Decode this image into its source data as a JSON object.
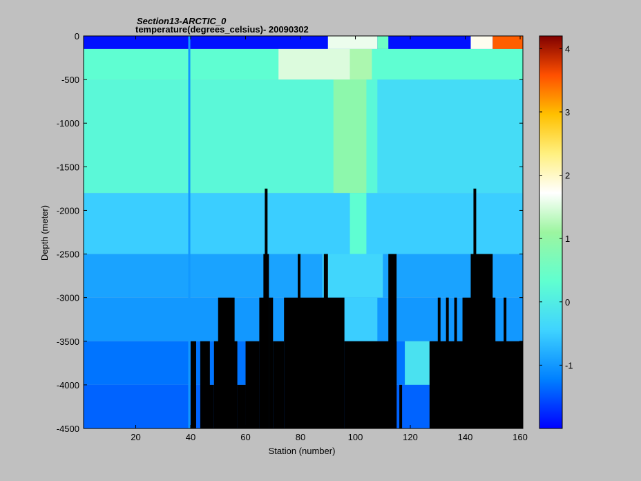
{
  "chart_data": {
    "type": "heatmap",
    "title": "Section13-ARCTIC_0",
    "subtitle": "temperature(degrees_celsius)- 20090302",
    "xlabel": "Station (number)",
    "ylabel": "Depth (meter)",
    "xlim": [
      1,
      161
    ],
    "ylim": [
      -4500,
      0
    ],
    "x_ticks": [
      20,
      40,
      60,
      80,
      100,
      120,
      140,
      160
    ],
    "y_ticks": [
      0,
      -500,
      -1000,
      -1500,
      -2000,
      -2500,
      -3000,
      -3500,
      -4000,
      -4500
    ],
    "colorbar": {
      "range": [
        -2,
        4.2
      ],
      "ticks": [
        4,
        3,
        2,
        1,
        0,
        -1
      ],
      "colormap": "jet",
      "nodata_color": "#000000"
    },
    "layers": [
      {
        "depth_range": [
          0,
          -150
        ],
        "base_value": -1.9,
        "segments": [
          {
            "stations": [
              90,
              108
            ],
            "value": 1.6
          },
          {
            "stations": [
              108,
              112
            ],
            "value": 0.5
          },
          {
            "stations": [
              142,
              150
            ],
            "value": 1.8
          },
          {
            "stations": [
              150,
              161
            ],
            "value": 3.5
          }
        ]
      },
      {
        "depth_range": [
          -150,
          -500
        ],
        "base_value": 0.3,
        "segments": [
          {
            "stations": [
              72,
              98
            ],
            "value": 1.5
          },
          {
            "stations": [
              98,
              106
            ],
            "value": 1.2
          }
        ]
      },
      {
        "depth_range": [
          -500,
          -1800
        ],
        "base_value": 0.2,
        "segments": [
          {
            "stations": [
              92,
              104
            ],
            "value": 0.9
          },
          {
            "stations": [
              108,
              161
            ],
            "value": -0.3
          }
        ]
      },
      {
        "depth_range": [
          -1800,
          -2500
        ],
        "base_value": -0.5,
        "segments": [
          {
            "stations": [
              98,
              104
            ],
            "value": 0.3
          }
        ]
      },
      {
        "depth_range": [
          -2500,
          -3000
        ],
        "base_value": -0.9,
        "segments": [
          {
            "stations": [
              88,
              110
            ],
            "value": -0.4
          }
        ]
      },
      {
        "depth_range": [
          -3000,
          -3500
        ],
        "base_value": -1.0,
        "segments": [
          {
            "stations": [
              96,
              108
            ],
            "value": -0.5
          }
        ]
      },
      {
        "depth_range": [
          -3500,
          -4000
        ],
        "base_value": -1.3,
        "segments": [
          {
            "stations": [
              118,
              127
            ],
            "value": -0.2
          }
        ]
      },
      {
        "depth_range": [
          -4000,
          -4500
        ],
        "base_value": -1.4,
        "segments": []
      }
    ],
    "bottom_mask": [
      {
        "stations": [
          40,
          42
        ],
        "from_depth": -3500
      },
      {
        "stations": [
          43.5,
          47
        ],
        "from_depth": -3500
      },
      {
        "stations": [
          45,
          48.5
        ],
        "from_depth": -4000
      },
      {
        "stations": [
          48.5,
          57
        ],
        "from_depth": -3500
      },
      {
        "stations": [
          50,
          56
        ],
        "from_depth": -3000
      },
      {
        "stations": [
          57,
          60
        ],
        "from_depth": -4000
      },
      {
        "stations": [
          60,
          65
        ],
        "from_depth": -3500
      },
      {
        "stations": [
          65,
          68.5
        ],
        "from_depth": -3000
      },
      {
        "stations": [
          66.5,
          68.5
        ],
        "from_depth": -2500
      },
      {
        "stations": [
          67,
          68
        ],
        "from_depth": -1750
      },
      {
        "stations": [
          68.5,
          70
        ],
        "from_depth": -3000
      },
      {
        "stations": [
          70,
          74
        ],
        "from_depth": -3500
      },
      {
        "stations": [
          74,
          96
        ],
        "from_depth": -3000
      },
      {
        "stations": [
          79,
          80
        ],
        "from_depth": -2500
      },
      {
        "stations": [
          88.5,
          90
        ],
        "from_depth": -2500
      },
      {
        "stations": [
          96,
          115
        ],
        "from_depth": -3500
      },
      {
        "stations": [
          112,
          115
        ],
        "from_depth": -2500
      },
      {
        "stations": [
          116,
          117
        ],
        "from_depth": -4000
      },
      {
        "stations": [
          127,
          161
        ],
        "from_depth": -3500
      },
      {
        "stations": [
          130,
          131
        ],
        "from_depth": -3000
      },
      {
        "stations": [
          133,
          134
        ],
        "from_depth": -3000
      },
      {
        "stations": [
          136,
          137
        ],
        "from_depth": -3000
      },
      {
        "stations": [
          139,
          151
        ],
        "from_depth": -3000
      },
      {
        "stations": [
          142,
          150
        ],
        "from_depth": -2500
      },
      {
        "stations": [
          143,
          144
        ],
        "from_depth": -1750
      },
      {
        "stations": [
          154,
          155
        ],
        "from_depth": -3000
      }
    ],
    "vertical_marker": {
      "station": 39.5,
      "value": -1.0
    }
  }
}
